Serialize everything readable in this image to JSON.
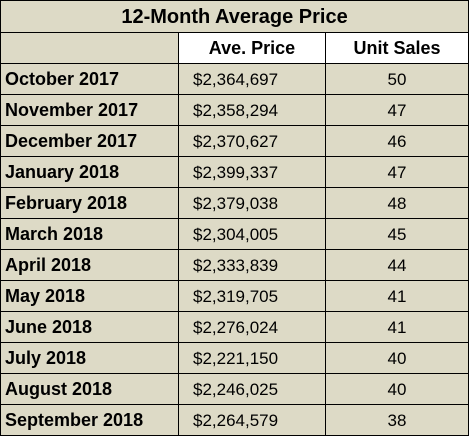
{
  "title": "12-Month Average Price",
  "columns": {
    "month": "",
    "price": "Ave. Price",
    "sales": "Unit Sales"
  },
  "rows": [
    {
      "month": "October 2017",
      "price": "$2,364,697",
      "sales": "50"
    },
    {
      "month": "November 2017",
      "price": "$2,358,294",
      "sales": "47"
    },
    {
      "month": "December 2017",
      "price": "$2,370,627",
      "sales": "46"
    },
    {
      "month": "January 2018",
      "price": "$2,399,337",
      "sales": "47"
    },
    {
      "month": "February 2018",
      "price": "$2,379,038",
      "sales": "48"
    },
    {
      "month": "March 2018",
      "price": "$2,304,005",
      "sales": "45"
    },
    {
      "month": "April 2018",
      "price": "$2,333,839",
      "sales": "44"
    },
    {
      "month": "May 2018",
      "price": "$2,319,705",
      "sales": "41"
    },
    {
      "month": "June 2018",
      "price": "$2,276,024",
      "sales": "41"
    },
    {
      "month": "July 2018",
      "price": "$2,221,150",
      "sales": "40"
    },
    {
      "month": "August 2018",
      "price": "$2,246,025",
      "sales": "40"
    },
    {
      "month": "September 2018",
      "price": "$2,264,579",
      "sales": "38"
    }
  ],
  "colors": {
    "shaded": "#dddac6",
    "plain": "#ffffff",
    "border": "#000000"
  }
}
